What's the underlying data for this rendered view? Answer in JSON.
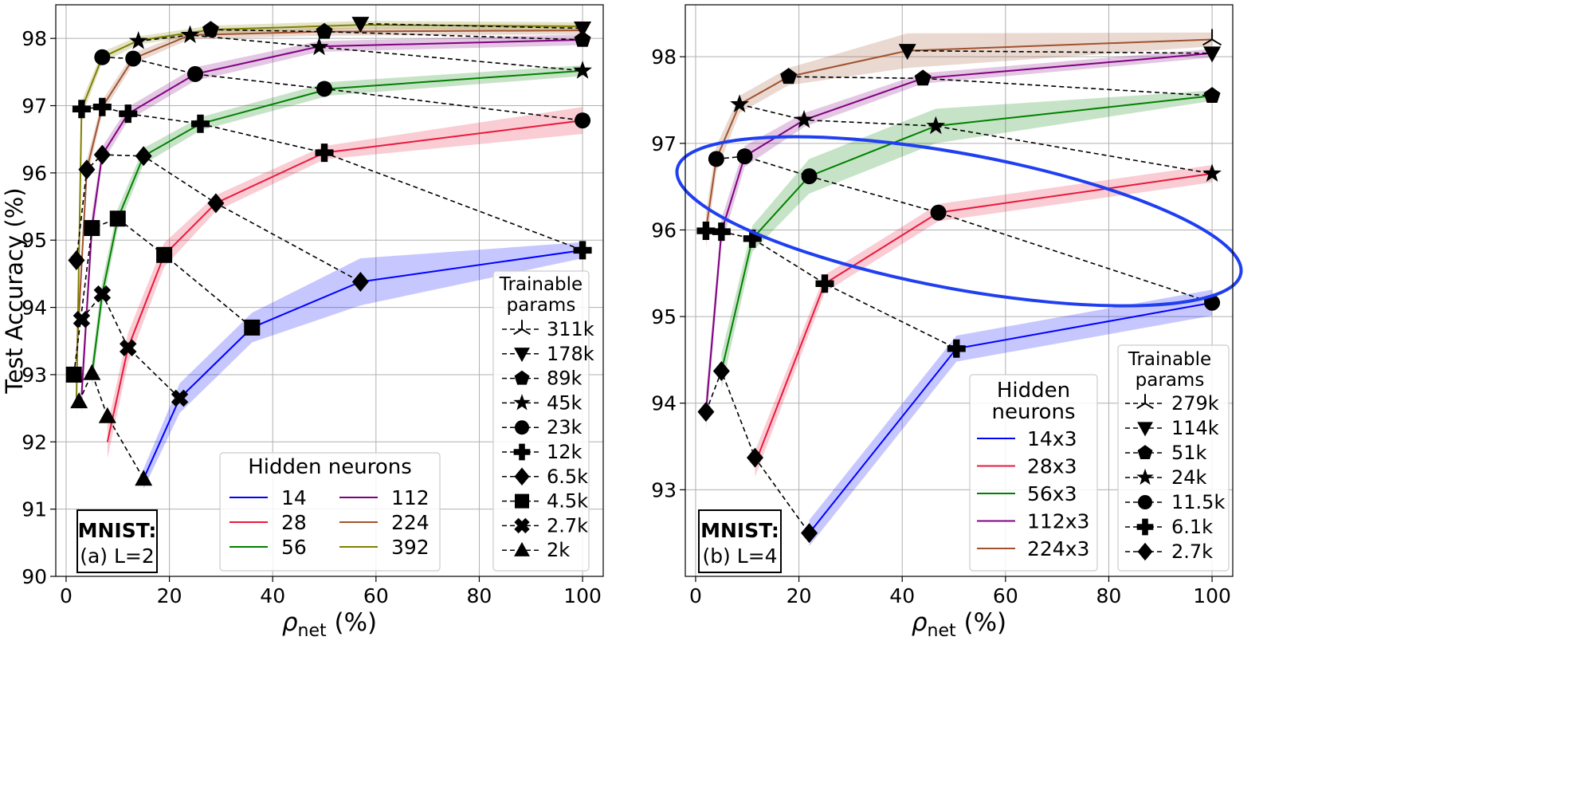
{
  "chart_data": [
    {
      "type": "line",
      "panel_label_line1": "MNIST:",
      "panel_label_line2": "(a) L=2",
      "xlabel": "ρ",
      "xlabel_sub": "net",
      "xlabel_unit": "(%)",
      "ylabel": "Test Accuracy (%)",
      "xlim": [
        -2,
        104
      ],
      "ylim": [
        90,
        98.5
      ],
      "xticks": [
        0,
        20,
        40,
        60,
        80,
        100
      ],
      "yticks": [
        90,
        91,
        92,
        93,
        94,
        95,
        96,
        97,
        98
      ],
      "grid": true,
      "legend_neurons_title": "Hidden neurons",
      "legend_params_title_line1": "Trainable",
      "legend_params_title_line2": "params",
      "series": [
        {
          "name": "14",
          "color": "#0000ff",
          "x": [
            15,
            22,
            36,
            57,
            100
          ],
          "y": [
            91.45,
            92.65,
            93.7,
            94.38,
            94.85
          ],
          "band": [
            0.15,
            0.22,
            0.22,
            0.35,
            0.12
          ]
        },
        {
          "name": "28",
          "color": "#e8193c",
          "x": [
            8,
            12,
            19,
            29,
            50,
            100
          ],
          "y": [
            92.0,
            93.4,
            94.78,
            95.55,
            96.3,
            96.78
          ],
          "band": [
            0.25,
            0.22,
            0.18,
            0.12,
            0.1,
            0.2
          ]
        },
        {
          "name": "56",
          "color": "#008000",
          "x": [
            5,
            7,
            10,
            15,
            26,
            51,
            100
          ],
          "y": [
            93.0,
            94.2,
            95.32,
            96.25,
            96.73,
            97.25,
            97.52
          ],
          "band": [
            0.2,
            0.2,
            0.15,
            0.12,
            0.1,
            0.1,
            0.08
          ]
        },
        {
          "name": "112",
          "color": "#800080",
          "x": [
            3,
            5,
            7,
            12,
            25,
            49,
            100
          ],
          "y": [
            92.7,
            95.2,
            96.27,
            96.88,
            97.47,
            97.88,
            97.98
          ],
          "band": [
            0.3,
            0.2,
            0.12,
            0.1,
            0.1,
            0.08,
            0.08
          ]
        },
        {
          "name": "224",
          "color": "#a0522d",
          "x": [
            2,
            4,
            7,
            13,
            24,
            49,
            100
          ],
          "y": [
            93.2,
            96.05,
            96.98,
            97.7,
            98.05,
            98.1,
            98.12
          ],
          "band": [
            0.3,
            0.15,
            0.1,
            0.08,
            0.06,
            0.06,
            0.06
          ]
        },
        {
          "name": "392",
          "color": "#808000",
          "x": [
            2,
            3,
            7,
            14,
            28,
            57,
            100
          ],
          "y": [
            92.6,
            96.95,
            97.72,
            97.97,
            98.13,
            98.2,
            98.18
          ],
          "band": [
            0.3,
            0.12,
            0.08,
            0.06,
            0.06,
            0.06,
            0.06
          ]
        }
      ],
      "param_groups": [
        {
          "label": "311k",
          "marker": "tri",
          "x": [],
          "y": []
        },
        {
          "label": "178k",
          "marker": "tri_down",
          "x": [
            57,
            100
          ],
          "y": [
            98.22,
            98.15
          ]
        },
        {
          "label": "89k",
          "marker": "pentagon",
          "x": [
            28,
            50,
            100
          ],
          "y": [
            98.13,
            98.1,
            97.98
          ]
        },
        {
          "label": "45k",
          "marker": "star",
          "x": [
            14,
            24,
            49,
            100
          ],
          "y": [
            97.96,
            98.05,
            97.87,
            97.52
          ]
        },
        {
          "label": "23k",
          "marker": "circle",
          "x": [
            7,
            13,
            25,
            50,
            100
          ],
          "y": [
            97.72,
            97.7,
            97.47,
            97.25,
            96.78
          ]
        },
        {
          "label": "12k",
          "marker": "plus",
          "x": [
            3,
            7,
            12,
            26,
            50,
            100
          ],
          "y": [
            96.95,
            96.98,
            96.88,
            96.73,
            96.3,
            94.85
          ]
        },
        {
          "label": "6.5k",
          "marker": "diamond",
          "x": [
            2,
            4,
            7,
            15,
            29,
            57
          ],
          "y": [
            94.7,
            96.05,
            96.27,
            96.25,
            95.55,
            94.38
          ]
        },
        {
          "label": "4.5k",
          "marker": "square",
          "x": [
            1.5,
            5,
            10,
            19,
            36
          ],
          "y": [
            93.0,
            95.18,
            95.32,
            94.78,
            93.7
          ]
        },
        {
          "label": "2.7k",
          "marker": "x",
          "x": [
            3,
            7,
            12,
            22
          ],
          "y": [
            93.82,
            94.2,
            93.4,
            92.65
          ]
        },
        {
          "label": "2k",
          "marker": "triangle",
          "x": [
            2.5,
            5,
            8,
            15
          ],
          "y": [
            92.6,
            93.02,
            92.38,
            91.45
          ]
        }
      ]
    },
    {
      "type": "line",
      "panel_label_line1": "MNIST:",
      "panel_label_line2": "(b) L=4",
      "xlabel": "ρ",
      "xlabel_sub": "net",
      "xlabel_unit": "(%)",
      "ylabel": "",
      "xlim": [
        -2,
        104
      ],
      "ylim": [
        92.0,
        98.6
      ],
      "xticks": [
        0,
        20,
        40,
        60,
        80,
        100
      ],
      "yticks": [
        93,
        94,
        95,
        96,
        97,
        98
      ],
      "grid": true,
      "legend_neurons_title_line1": "Hidden",
      "legend_neurons_title_line2": "neurons",
      "legend_params_title_line1": "Trainable",
      "legend_params_title_line2": "params",
      "series": [
        {
          "name": "14x3",
          "color": "#0000ff",
          "x": [
            22,
            50.5,
            100
          ],
          "y": [
            92.5,
            94.63,
            95.16
          ],
          "band": [
            0.15,
            0.15,
            0.15
          ]
        },
        {
          "name": "28x3",
          "color": "#e8193c",
          "x": [
            11.5,
            25,
            47,
            100
          ],
          "y": [
            93.3,
            95.38,
            96.2,
            96.65
          ],
          "band": [
            0.15,
            0.1,
            0.1,
            0.1
          ]
        },
        {
          "name": "56x3",
          "color": "#008000",
          "x": [
            5,
            11,
            22,
            46.5,
            100
          ],
          "y": [
            94.37,
            95.9,
            96.62,
            97.2,
            97.55
          ],
          "band": [
            0.2,
            0.15,
            0.2,
            0.2,
            0.06
          ]
        },
        {
          "name": "112x3",
          "color": "#800080",
          "x": [
            2,
            5,
            9.5,
            21,
            44,
            100
          ],
          "y": [
            93.9,
            95.98,
            96.85,
            97.27,
            97.75,
            98.04
          ],
          "band": [
            0.2,
            0.15,
            0.12,
            0.08,
            0.06,
            0.05
          ]
        },
        {
          "name": "224x3",
          "color": "#a0522d",
          "x": [
            2,
            4,
            8.5,
            18,
            41,
            100
          ],
          "y": [
            96.0,
            96.82,
            97.45,
            97.77,
            98.07,
            98.2
          ],
          "band": [
            0.2,
            0.15,
            0.1,
            0.1,
            0.2,
            0.08
          ]
        }
      ],
      "param_groups": [
        {
          "label": "279k",
          "marker": "tri",
          "x": [
            100
          ],
          "y": [
            98.2
          ]
        },
        {
          "label": "114k",
          "marker": "tri_down",
          "x": [
            41,
            100
          ],
          "y": [
            98.07,
            98.04
          ]
        },
        {
          "label": "51k",
          "marker": "pentagon",
          "x": [
            18,
            44,
            100
          ],
          "y": [
            97.77,
            97.75,
            97.55
          ]
        },
        {
          "label": "24k",
          "marker": "star",
          "x": [
            8.5,
            21,
            46.5,
            100
          ],
          "y": [
            97.45,
            97.27,
            97.2,
            96.65
          ]
        },
        {
          "label": "11.5k",
          "marker": "circle",
          "x": [
            4,
            9.5,
            22,
            47,
            100
          ],
          "y": [
            96.82,
            96.85,
            96.62,
            96.2,
            95.16
          ]
        },
        {
          "label": "6.1k",
          "marker": "plus",
          "x": [
            2,
            5,
            11,
            25,
            50.5
          ],
          "y": [
            95.99,
            95.98,
            95.9,
            95.38,
            94.63
          ]
        },
        {
          "label": "2.7k",
          "marker": "diamond",
          "x": [
            2,
            5,
            11.5,
            22
          ],
          "y": [
            93.9,
            94.37,
            93.37,
            92.5
          ]
        }
      ],
      "highlight": {
        "shape": "ellipse",
        "color": "#1f3ff0",
        "cx": 51,
        "cy": 96.1,
        "rx": 55.5,
        "ry": 0.78
      }
    }
  ]
}
